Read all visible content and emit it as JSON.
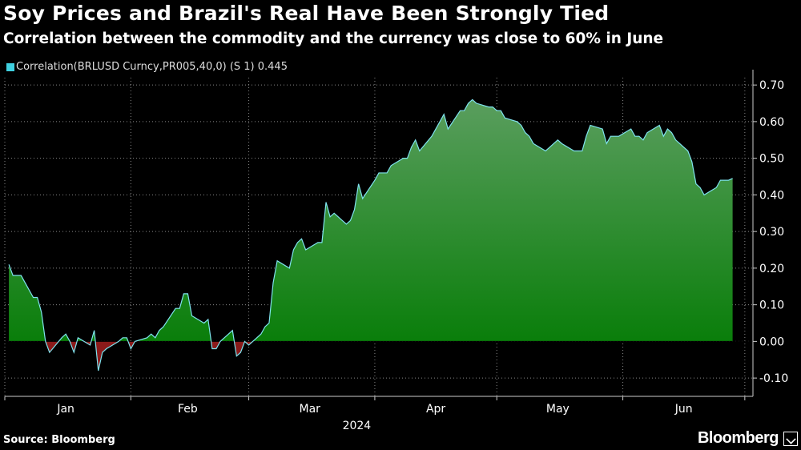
{
  "title": "Soy Prices and Brazil's Real Have Been Strongly Tied",
  "subtitle": "Correlation between the commodity and the currency was close to 60% in June",
  "source": "Source: Bloomberg",
  "brand": "Bloomberg",
  "colors": {
    "background": "#000000",
    "positive_fill_top": "#5a9e5e",
    "positive_fill_bottom": "#007a00",
    "negative_fill": "#8b1a1a",
    "line": "#7fe3ee",
    "legend_swatch": "#3fd0e0",
    "grid": "#888888"
  },
  "chart_data": {
    "type": "area",
    "legend": "Correlation(BRLUSD Curncy,PR005,40,0) (S 1) 0.445",
    "xlabel": "2024",
    "ylabel": "",
    "ylim": [
      -0.15,
      0.72
    ],
    "yticks": [
      -0.1,
      0.0,
      0.1,
      0.2,
      0.3,
      0.4,
      0.5,
      0.6,
      0.7
    ],
    "ytick_labels": [
      "-0.10",
      "0.00",
      "0.10",
      "0.20",
      "0.30",
      "0.40",
      "0.50",
      "0.60",
      "0.70"
    ],
    "xlim": [
      "2024-01-01",
      "2024-07-03"
    ],
    "month_ticks": [
      "2024-01-01",
      "2024-02-01",
      "2024-03-01",
      "2024-04-01",
      "2024-05-01",
      "2024-06-01",
      "2024-07-01"
    ],
    "month_labels": [
      {
        "label": "Jan",
        "date": "2024-01-16"
      },
      {
        "label": "Feb",
        "date": "2024-02-15"
      },
      {
        "label": "Mar",
        "date": "2024-03-16"
      },
      {
        "label": "Apr",
        "date": "2024-04-16"
      },
      {
        "label": "May",
        "date": "2024-05-16"
      },
      {
        "label": "Jun",
        "date": "2024-06-16"
      }
    ],
    "grid": true,
    "legend_position": "top-left",
    "series": [
      {
        "name": "Correlation(BRLUSD Curncy,PR005,40,0) (S 1)",
        "x": [
          "2024-01-02",
          "2024-01-03",
          "2024-01-04",
          "2024-01-05",
          "2024-01-08",
          "2024-01-09",
          "2024-01-10",
          "2024-01-11",
          "2024-01-12",
          "2024-01-15",
          "2024-01-16",
          "2024-01-17",
          "2024-01-18",
          "2024-01-19",
          "2024-01-22",
          "2024-01-23",
          "2024-01-24",
          "2024-01-25",
          "2024-01-26",
          "2024-01-29",
          "2024-01-30",
          "2024-01-31",
          "2024-02-01",
          "2024-02-02",
          "2024-02-05",
          "2024-02-06",
          "2024-02-07",
          "2024-02-08",
          "2024-02-09",
          "2024-02-12",
          "2024-02-13",
          "2024-02-14",
          "2024-02-15",
          "2024-02-16",
          "2024-02-19",
          "2024-02-20",
          "2024-02-21",
          "2024-02-22",
          "2024-02-23",
          "2024-02-26",
          "2024-02-27",
          "2024-02-28",
          "2024-02-29",
          "2024-03-01",
          "2024-03-04",
          "2024-03-05",
          "2024-03-06",
          "2024-03-07",
          "2024-03-08",
          "2024-03-11",
          "2024-03-12",
          "2024-03-13",
          "2024-03-14",
          "2024-03-15",
          "2024-03-18",
          "2024-03-19",
          "2024-03-20",
          "2024-03-21",
          "2024-03-22",
          "2024-03-25",
          "2024-03-26",
          "2024-03-27",
          "2024-03-28",
          "2024-03-29",
          "2024-04-01",
          "2024-04-02",
          "2024-04-03",
          "2024-04-04",
          "2024-04-05",
          "2024-04-08",
          "2024-04-09",
          "2024-04-10",
          "2024-04-11",
          "2024-04-12",
          "2024-04-15",
          "2024-04-16",
          "2024-04-17",
          "2024-04-18",
          "2024-04-19",
          "2024-04-22",
          "2024-04-23",
          "2024-04-24",
          "2024-04-25",
          "2024-04-26",
          "2024-04-29",
          "2024-04-30",
          "2024-05-01",
          "2024-05-02",
          "2024-05-03",
          "2024-05-06",
          "2024-05-07",
          "2024-05-08",
          "2024-05-09",
          "2024-05-10",
          "2024-05-13",
          "2024-05-14",
          "2024-05-15",
          "2024-05-16",
          "2024-05-17",
          "2024-05-20",
          "2024-05-21",
          "2024-05-22",
          "2024-05-23",
          "2024-05-24",
          "2024-05-27",
          "2024-05-28",
          "2024-05-29",
          "2024-05-30",
          "2024-05-31",
          "2024-06-03",
          "2024-06-04",
          "2024-06-05",
          "2024-06-06",
          "2024-06-07",
          "2024-06-10",
          "2024-06-11",
          "2024-06-12",
          "2024-06-13",
          "2024-06-14",
          "2024-06-17",
          "2024-06-18",
          "2024-06-19",
          "2024-06-20",
          "2024-06-21",
          "2024-06-24",
          "2024-06-25",
          "2024-06-26",
          "2024-06-27",
          "2024-06-28"
        ],
        "values": [
          0.21,
          0.18,
          0.18,
          0.18,
          0.12,
          0.12,
          0.08,
          0.0,
          -0.03,
          0.01,
          0.02,
          0.0,
          -0.03,
          0.01,
          -0.01,
          0.03,
          -0.08,
          -0.03,
          -0.02,
          0.0,
          0.01,
          0.01,
          -0.02,
          0.0,
          0.01,
          0.02,
          0.01,
          0.03,
          0.04,
          0.09,
          0.09,
          0.13,
          0.13,
          0.07,
          0.05,
          0.06,
          -0.02,
          -0.02,
          0.0,
          0.03,
          -0.04,
          -0.03,
          0.0,
          -0.01,
          0.02,
          0.04,
          0.05,
          0.16,
          0.22,
          0.2,
          0.25,
          0.27,
          0.28,
          0.25,
          0.27,
          0.27,
          0.38,
          0.34,
          0.35,
          0.32,
          0.33,
          0.36,
          0.43,
          0.39,
          0.44,
          0.46,
          0.46,
          0.46,
          0.48,
          0.5,
          0.5,
          0.53,
          0.55,
          0.52,
          0.56,
          0.58,
          0.6,
          0.62,
          0.58,
          0.63,
          0.63,
          0.65,
          0.66,
          0.65,
          0.64,
          0.64,
          0.63,
          0.63,
          0.61,
          0.6,
          0.59,
          0.57,
          0.56,
          0.54,
          0.52,
          0.53,
          0.54,
          0.55,
          0.54,
          0.52,
          0.52,
          0.52,
          0.56,
          0.59,
          0.58,
          0.54,
          0.56,
          0.56,
          0.56,
          0.58,
          0.56,
          0.56,
          0.55,
          0.57,
          0.59,
          0.56,
          0.58,
          0.57,
          0.55,
          0.52,
          0.49,
          0.43,
          0.42,
          0.4,
          0.42,
          0.44,
          0.44,
          0.44,
          0.445
        ]
      }
    ],
    "last_value": 0.445
  }
}
